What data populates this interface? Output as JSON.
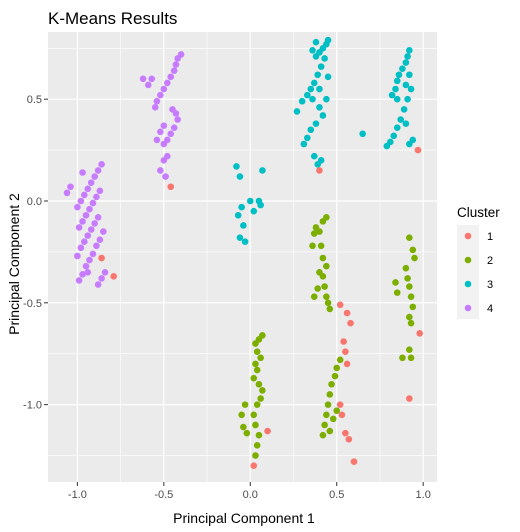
{
  "chart_data": {
    "type": "scatter",
    "title": "K-Means Results",
    "xlabel": "Principal Component 1",
    "ylabel": "Principal Component 2",
    "xlim": [
      -1.17,
      1.08
    ],
    "ylim": [
      -1.38,
      0.83
    ],
    "x_ticks": [
      -1.0,
      -0.5,
      0.0,
      0.5,
      1.0
    ],
    "x_tick_labels": [
      "-1.0",
      "-0.5",
      "0.0",
      "0.5",
      "1.0"
    ],
    "y_ticks": [
      -1.0,
      -0.5,
      0.0,
      0.5
    ],
    "y_tick_labels": [
      "-1.0",
      "-0.5",
      "0.0",
      "0.5"
    ],
    "grid": true,
    "legend": {
      "title": "Cluster",
      "position": "right"
    },
    "series": [
      {
        "name": "1",
        "color": "#F8766D",
        "points": [
          [
            -0.86,
            -0.28
          ],
          [
            -0.79,
            -0.37
          ],
          [
            -0.46,
            0.07
          ],
          [
            0.4,
            0.15
          ],
          [
            0.97,
            0.25
          ],
          [
            0.52,
            -0.51
          ],
          [
            0.56,
            -0.55
          ],
          [
            0.58,
            -0.6
          ],
          [
            0.54,
            -0.69
          ],
          [
            0.55,
            -0.74
          ],
          [
            0.56,
            -0.8
          ],
          [
            0.52,
            -1.0
          ],
          [
            0.53,
            -1.05
          ],
          [
            0.55,
            -1.14
          ],
          [
            0.57,
            -1.17
          ],
          [
            0.6,
            -1.28
          ],
          [
            0.98,
            -0.65
          ],
          [
            0.92,
            -0.97
          ],
          [
            0.02,
            -1.3
          ],
          [
            0.1,
            -1.13
          ]
        ]
      },
      {
        "name": "2",
        "color": "#7CAE00",
        "points": [
          [
            0.37,
            -0.16
          ],
          [
            0.38,
            -0.13
          ],
          [
            0.4,
            -0.15
          ],
          [
            0.42,
            -0.1
          ],
          [
            0.44,
            -0.08
          ],
          [
            0.36,
            -0.22
          ],
          [
            0.41,
            -0.22
          ],
          [
            0.42,
            -0.28
          ],
          [
            0.44,
            -0.32
          ],
          [
            0.4,
            -0.35
          ],
          [
            0.42,
            -0.37
          ],
          [
            0.43,
            -0.42
          ],
          [
            0.44,
            -0.47
          ],
          [
            0.45,
            -0.5
          ],
          [
            0.46,
            -0.53
          ],
          [
            0.39,
            -0.43
          ],
          [
            0.37,
            -0.47
          ],
          [
            0.92,
            -0.18
          ],
          [
            0.94,
            -0.24
          ],
          [
            0.95,
            -0.28
          ],
          [
            0.9,
            -0.33
          ],
          [
            0.91,
            -0.38
          ],
          [
            0.92,
            -0.42
          ],
          [
            0.93,
            -0.47
          ],
          [
            0.94,
            -0.52
          ],
          [
            0.92,
            -0.57
          ],
          [
            0.93,
            -0.6
          ],
          [
            0.85,
            -0.45
          ],
          [
            0.84,
            -0.4
          ],
          [
            0.92,
            -0.73
          ],
          [
            0.88,
            -0.77
          ],
          [
            0.93,
            -0.77
          ],
          [
            0.07,
            -0.66
          ],
          [
            0.05,
            -0.68
          ],
          [
            0.03,
            -0.7
          ],
          [
            0.04,
            -0.74
          ],
          [
            0.06,
            -0.77
          ],
          [
            0.03,
            -0.8
          ],
          [
            0.04,
            -0.83
          ],
          [
            0.02,
            -0.87
          ],
          [
            0.05,
            -0.9
          ],
          [
            0.07,
            -0.93
          ],
          [
            0.06,
            -0.97
          ],
          [
            0.04,
            -1.0
          ],
          [
            0.02,
            -1.05
          ],
          [
            0.03,
            -1.1
          ],
          [
            0.05,
            -1.15
          ],
          [
            0.04,
            -1.2
          ],
          [
            0.03,
            -1.25
          ],
          [
            -0.03,
            -1.0
          ],
          [
            -0.05,
            -1.05
          ],
          [
            -0.04,
            -1.11
          ],
          [
            -0.02,
            -1.14
          ],
          [
            0.52,
            -0.78
          ],
          [
            0.5,
            -0.82
          ],
          [
            0.49,
            -0.86
          ],
          [
            0.47,
            -0.9
          ],
          [
            0.46,
            -0.95
          ],
          [
            0.45,
            -1.0
          ],
          [
            0.44,
            -1.05
          ],
          [
            0.43,
            -1.1
          ],
          [
            0.42,
            -1.15
          ],
          [
            0.5,
            -1.03
          ],
          [
            0.48,
            -1.07
          ],
          [
            0.46,
            -1.13
          ]
        ]
      },
      {
        "name": "3",
        "color": "#00BFC4",
        "points": [
          [
            0.45,
            0.79
          ],
          [
            0.44,
            0.77
          ],
          [
            0.42,
            0.75
          ],
          [
            0.4,
            0.73
          ],
          [
            0.38,
            0.71
          ],
          [
            0.36,
            0.74
          ],
          [
            0.38,
            0.78
          ],
          [
            0.43,
            0.7
          ],
          [
            0.41,
            0.66
          ],
          [
            0.39,
            0.62
          ],
          [
            0.37,
            0.58
          ],
          [
            0.35,
            0.55
          ],
          [
            0.33,
            0.52
          ],
          [
            0.3,
            0.49
          ],
          [
            0.36,
            0.5
          ],
          [
            0.4,
            0.46
          ],
          [
            0.42,
            0.42
          ],
          [
            0.38,
            0.38
          ],
          [
            0.35,
            0.35
          ],
          [
            0.33,
            0.31
          ],
          [
            0.31,
            0.28
          ],
          [
            0.4,
            0.55
          ],
          [
            0.44,
            0.5
          ],
          [
            0.45,
            0.61
          ],
          [
            0.41,
            0.2
          ],
          [
            0.39,
            0.18
          ],
          [
            0.37,
            0.22
          ],
          [
            0.27,
            0.44
          ],
          [
            0.65,
            0.33
          ],
          [
            0.92,
            0.74
          ],
          [
            0.91,
            0.71
          ],
          [
            0.9,
            0.68
          ],
          [
            0.88,
            0.65
          ],
          [
            0.86,
            0.62
          ],
          [
            0.85,
            0.59
          ],
          [
            0.84,
            0.55
          ],
          [
            0.82,
            0.52
          ],
          [
            0.85,
            0.5
          ],
          [
            0.9,
            0.57
          ],
          [
            0.92,
            0.62
          ],
          [
            0.93,
            0.55
          ],
          [
            0.91,
            0.5
          ],
          [
            0.89,
            0.45
          ],
          [
            0.87,
            0.4
          ],
          [
            0.85,
            0.36
          ],
          [
            0.83,
            0.32
          ],
          [
            0.81,
            0.29
          ],
          [
            0.79,
            0.27
          ],
          [
            0.9,
            0.38
          ],
          [
            0.92,
            0.28
          ],
          [
            0.94,
            0.3
          ],
          [
            -0.08,
            0.17
          ],
          [
            -0.06,
            0.12
          ],
          [
            -0.05,
            -0.03
          ],
          [
            -0.07,
            -0.07
          ],
          [
            -0.04,
            -0.12
          ],
          [
            -0.06,
            -0.18
          ],
          [
            -0.03,
            -0.2
          ],
          [
            0.0,
            0.0
          ],
          [
            0.02,
            -0.05
          ],
          [
            0.05,
            0.0
          ],
          [
            0.07,
            0.15
          ],
          [
            0.06,
            -0.02
          ]
        ]
      },
      {
        "name": "4",
        "color": "#C77CFF",
        "points": [
          [
            -0.4,
            0.72
          ],
          [
            -0.42,
            0.7
          ],
          [
            -0.43,
            0.67
          ],
          [
            -0.44,
            0.64
          ],
          [
            -0.46,
            0.61
          ],
          [
            -0.48,
            0.58
          ],
          [
            -0.5,
            0.55
          ],
          [
            -0.52,
            0.52
          ],
          [
            -0.54,
            0.49
          ],
          [
            -0.55,
            0.46
          ],
          [
            -0.57,
            0.6
          ],
          [
            -0.59,
            0.57
          ],
          [
            -0.62,
            0.6
          ],
          [
            -0.45,
            0.45
          ],
          [
            -0.43,
            0.43
          ],
          [
            -0.42,
            0.4
          ],
          [
            -0.44,
            0.36
          ],
          [
            -0.46,
            0.33
          ],
          [
            -0.48,
            0.3
          ],
          [
            -0.5,
            0.37
          ],
          [
            -0.52,
            0.34
          ],
          [
            -0.54,
            0.3
          ],
          [
            -0.5,
            0.28
          ],
          [
            -0.48,
            0.22
          ],
          [
            -0.5,
            0.2
          ],
          [
            -0.52,
            0.15
          ],
          [
            -0.49,
            0.12
          ],
          [
            -0.86,
            0.18
          ],
          [
            -0.88,
            0.15
          ],
          [
            -0.9,
            0.12
          ],
          [
            -0.92,
            0.09
          ],
          [
            -0.94,
            0.06
          ],
          [
            -0.96,
            0.03
          ],
          [
            -0.98,
            0.0
          ],
          [
            -1.0,
            -0.03
          ],
          [
            -0.87,
            0.05
          ],
          [
            -0.89,
            0.02
          ],
          [
            -0.91,
            -0.01
          ],
          [
            -0.93,
            -0.04
          ],
          [
            -0.95,
            -0.07
          ],
          [
            -0.97,
            -0.1
          ],
          [
            -0.99,
            -0.13
          ],
          [
            -0.88,
            -0.08
          ],
          [
            -0.9,
            -0.11
          ],
          [
            -0.92,
            -0.14
          ],
          [
            -0.94,
            -0.17
          ],
          [
            -0.96,
            -0.2
          ],
          [
            -0.98,
            -0.23
          ],
          [
            -1.0,
            -0.27
          ],
          [
            -0.85,
            -0.15
          ],
          [
            -0.87,
            -0.19
          ],
          [
            -0.89,
            -0.22
          ],
          [
            -0.91,
            -0.26
          ],
          [
            -0.93,
            -0.29
          ],
          [
            -0.95,
            -0.32
          ],
          [
            -0.97,
            -0.36
          ],
          [
            -0.99,
            -0.39
          ],
          [
            -0.84,
            -0.35
          ],
          [
            -0.86,
            -0.38
          ],
          [
            -0.88,
            -0.41
          ],
          [
            -1.04,
            0.07
          ],
          [
            -1.06,
            0.04
          ],
          [
            -0.97,
            0.14
          ],
          [
            -0.94,
            -0.35
          ]
        ]
      }
    ]
  }
}
